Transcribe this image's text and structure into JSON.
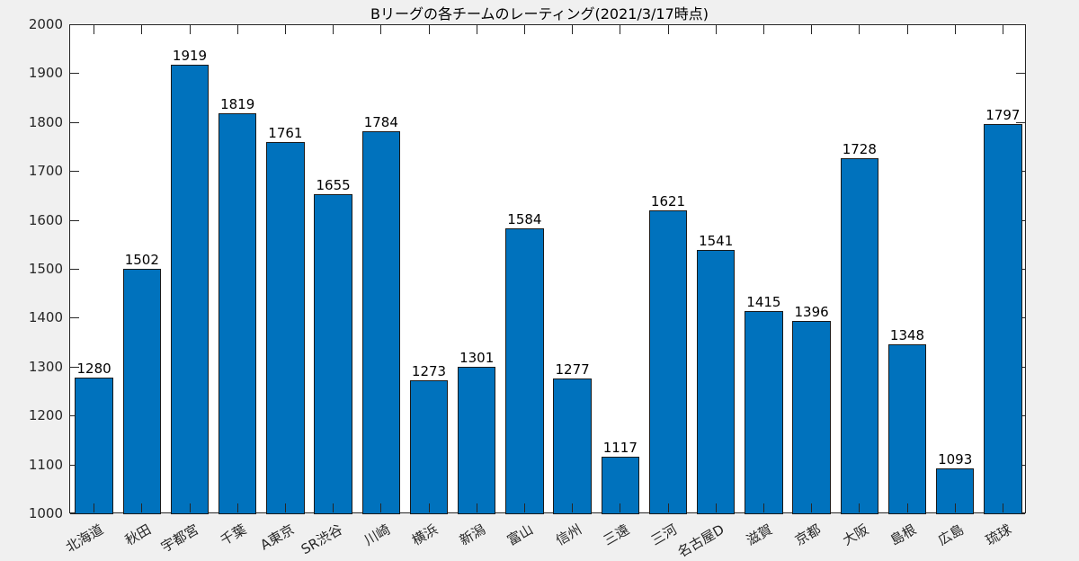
{
  "chart_data": {
    "type": "bar",
    "title": "Bリーグの各チームのレーティング(2021/3/17時点)",
    "xlabel": "",
    "ylabel": "",
    "ylim": [
      1000,
      2000
    ],
    "yticks": [
      1000,
      1100,
      1200,
      1300,
      1400,
      1500,
      1600,
      1700,
      1800,
      1900,
      2000
    ],
    "grid": false,
    "legend": null,
    "bar_color": "#0072bd",
    "categories": [
      "北海道",
      "秋田",
      "宇都宮",
      "千葉",
      "A東京",
      "SR渋谷",
      "川崎",
      "横浜",
      "新潟",
      "富山",
      "信州",
      "三遠",
      "三河",
      "名古屋D",
      "滋賀",
      "京都",
      "大阪",
      "島根",
      "広島",
      "琉球"
    ],
    "values": [
      1280,
      1502,
      1919,
      1819,
      1761,
      1655,
      1784,
      1273,
      1301,
      1584,
      1277,
      1117,
      1621,
      1541,
      1415,
      1396,
      1728,
      1348,
      1093,
      1797
    ],
    "data_labels": true
  }
}
